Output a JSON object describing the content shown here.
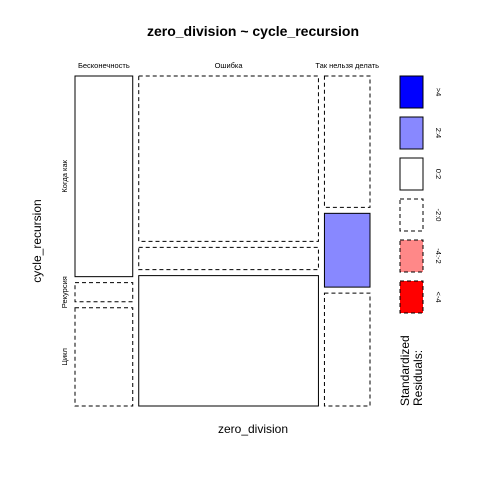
{
  "chart_data": {
    "type": "mosaic",
    "title": "zero_division ~ cycle_recursion",
    "xlabel": "zero_division",
    "ylabel": "cycle_recursion",
    "x_categories": [
      "Бесконечность",
      "Ошибка",
      "Так нельзя делать"
    ],
    "y_categories": [
      "Когда как",
      "Рекурсия",
      "Цикл"
    ],
    "x_proportions": [
      0.204,
      0.635,
      0.161
    ],
    "cells": [
      {
        "x": "Бесконечность",
        "y": "Когда как",
        "proportion": 0.631,
        "residual_class": "0:2"
      },
      {
        "x": "Бесконечность",
        "y": "Рекурсия",
        "proportion": 0.06,
        "residual_class": "-2:0"
      },
      {
        "x": "Бесконечность",
        "y": "Цикл",
        "proportion": 0.309,
        "residual_class": "-2:0"
      },
      {
        "x": "Ошибка",
        "y": "Когда как",
        "proportion": 0.52,
        "residual_class": "-2:0"
      },
      {
        "x": "Ошибка",
        "y": "Рекурсия",
        "proportion": 0.07,
        "residual_class": "-2:0"
      },
      {
        "x": "Ошибка",
        "y": "Цикл",
        "proportion": 0.41,
        "residual_class": "0:2"
      },
      {
        "x": "Так нельзя делать",
        "y": "Когда как",
        "proportion": 0.413,
        "residual_class": "-2:0"
      },
      {
        "x": "Так нельзя делать",
        "y": "Рекурсия",
        "proportion": 0.232,
        "residual_class": "2:4"
      },
      {
        "x": "Так нельзя делать",
        "y": "Цикл",
        "proportion": 0.355,
        "residual_class": "-2:0"
      }
    ],
    "legend": {
      "title_lines": [
        "Standardized",
        "Residuals:"
      ],
      "entries": [
        {
          "label": ">4",
          "color": "#0000ff",
          "dashed": false
        },
        {
          "label": "2:4",
          "color": "#8888ff",
          "dashed": false
        },
        {
          "label": "0:2",
          "color": "#ffffff",
          "dashed": false
        },
        {
          "label": "-2:0",
          "color": "#ffffff",
          "dashed": true
        },
        {
          "label": "-4:-2",
          "color": "#ff8888",
          "dashed": true
        },
        {
          "label": "<-4",
          "color": "#ff0000",
          "dashed": true
        }
      ]
    }
  }
}
